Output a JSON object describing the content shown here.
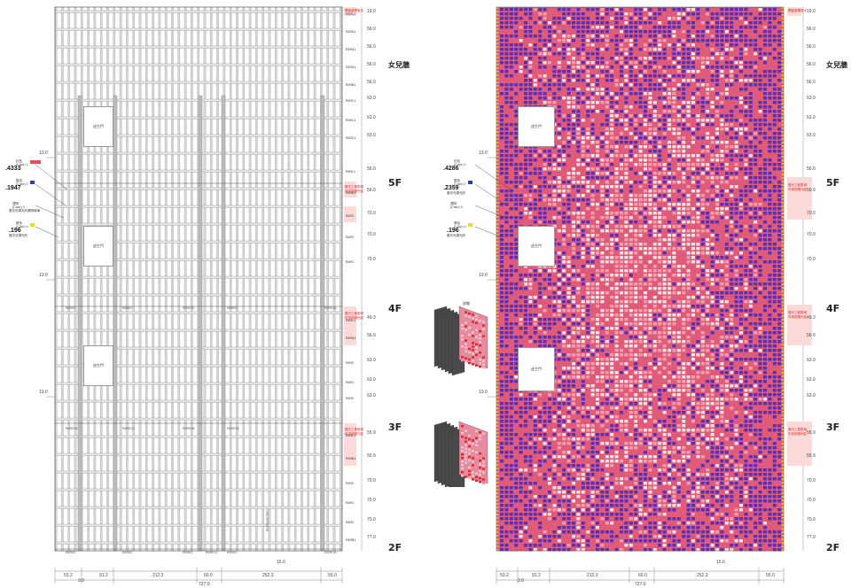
{
  "left": {
    "section_title": "女兒牆",
    "floors": [
      "5F",
      "4F",
      "3F",
      "2F"
    ],
    "door_label": "逃生門",
    "right_dims": [
      "19.0",
      "56.0",
      "56.0",
      "56.0",
      "56.0",
      "63.0",
      "63.0",
      "63.0",
      "56.0",
      "56.0",
      "70.0",
      "70.0",
      "70.0",
      "49.3",
      "56.0",
      "63.0",
      "63.0",
      "63.0",
      "55.9",
      "55.9",
      "70.0",
      "70.0",
      "70.0",
      "77.0"
    ],
    "row_labels": [
      "R4RL1",
      "R4RA1",
      "R4RA1",
      "R4RA1",
      "R4RB1",
      "R4RC1",
      "R4RC1",
      "R4RC1",
      "R4RL1",
      "R4RA1",
      "R4RC",
      "R4RC",
      "R4RC",
      "R4RL1",
      "R4RA1",
      "R4RC",
      "R4RC",
      "R4RC",
      "R4RL1",
      "R4RB1",
      "R4RC",
      "R4RC",
      "R4RC",
      "R4RB1"
    ],
    "red_notes": [
      "開窗處理燈光",
      "燈光工程區域",
      "可拆卸燈光區",
      "燈光工程區域",
      "可拆卸燈光區",
      "燈光工程區域",
      "可拆卸燈光區"
    ],
    "legend": [
      {
        "title": "紅色",
        "sub": "(Color) 1",
        "value": ".4333",
        "desc": "",
        "color": "#e94b5b"
      },
      {
        "title": "藍色",
        "sub": "(Color) 2",
        "value": ".1947",
        "desc": "",
        "color": "#2a3fb0"
      },
      {
        "title": "透明",
        "sub": "(Color) 3",
        "value": "",
        "desc": "燈光可調光的透明玻璃",
        "color": "#cccccc"
      },
      {
        "title": "黃色",
        "sub": "(Color) 4",
        "value": ".196",
        "desc": "燈光可調光的",
        "color": "#e2d83a"
      }
    ],
    "left_dims": [
      "13.0",
      "13.0",
      "13.0"
    ],
    "tags_row1": [
      "R6RE0",
      "R6RE0",
      "R6RE1C",
      "R6RE0",
      "R6RE1A"
    ],
    "tags_row2": [
      "R6RE1B",
      "R6RE1B",
      "R6RE1B",
      "R6RE1B"
    ],
    "tags_bottom": [
      "R6RE0",
      "R6RE0",
      "R6RE0",
      "R6RE1C",
      "R6RE0",
      "R6RE1A"
    ],
    "vertical_note": "RCRB4/RCRB3",
    "bottom_dims": [
      "53.2",
      "91.2",
      "212.3",
      "60.0",
      "252.3",
      "55.0"
    ],
    "bottom_small": [
      "3.0",
      "16.0"
    ],
    "total": "727.0"
  },
  "right": {
    "section_title": "女兒牆",
    "floors": [
      "5F",
      "4F",
      "3F",
      "2F"
    ],
    "door_label": "逃生門",
    "right_dims": [
      "19.0",
      "56.0",
      "56.0",
      "56.0",
      "56.0",
      "63.0",
      "63.0",
      "63.0",
      "56.0",
      "56.0",
      "70.0",
      "70.0",
      "70.0",
      "49.3",
      "56.0",
      "63.0",
      "63.0",
      "63.0",
      "55.9",
      "55.9",
      "70.0",
      "70.0",
      "70.0",
      "77.0"
    ],
    "legend": [
      {
        "title": "紅色",
        "sub": "(Color) 1",
        "value": ".4286",
        "desc": "",
        "color": "#e94b5b"
      },
      {
        "title": "藍色",
        "sub": "(Color) 2",
        "value": ".2359",
        "desc": "燈光可調光的",
        "color": "#2a3fb0"
      },
      {
        "title": "透明",
        "sub": "(Color) 3",
        "value": "",
        "desc": "",
        "color": "#cccccc"
      },
      {
        "title": "黃色",
        "sub": "(Color) 4",
        "value": ".196",
        "desc": "燈光可調光的",
        "color": "#e2d83a"
      }
    ],
    "left_dims": [
      "13.0",
      "13.0",
      "13.0"
    ],
    "red_notes": [
      "開窗處理燈光",
      "燈光工程區域",
      "可拆卸燈光區",
      "燈光工程區域",
      "可拆卸燈光區",
      "燈光工程區域",
      "可拆卸燈光區"
    ],
    "detail_label": "詳細",
    "bottom_dims": [
      "53.2",
      "91.2",
      "212.3",
      "60.0",
      "252.3",
      "55.0"
    ],
    "bottom_small": [
      "3.0",
      "16.0"
    ],
    "total": "727.0"
  },
  "colors": {
    "red_tile": "#e05a7a",
    "pink_tile": "#f4a0ac",
    "blue_tile": "#5530b8",
    "cream_tile": "#f8e6e6",
    "yellow_edge": "#e8c82a",
    "mullion": "#a8a8a8"
  }
}
